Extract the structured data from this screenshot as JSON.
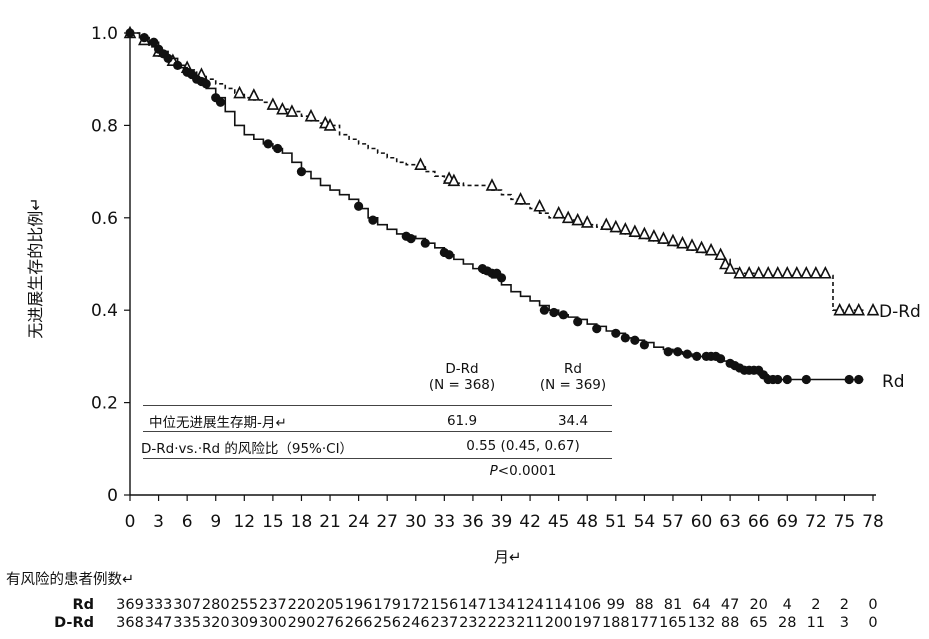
{
  "chart_data": {
    "type": "line",
    "ylabel": "无进展生存的比例↵",
    "xlabel": "月↵",
    "xlim": [
      0,
      78
    ],
    "ylim": [
      0,
      1.0
    ],
    "x_ticks": [
      0,
      3,
      6,
      9,
      12,
      15,
      18,
      21,
      24,
      27,
      30,
      33,
      36,
      39,
      42,
      45,
      48,
      51,
      54,
      57,
      60,
      63,
      66,
      69,
      72,
      75,
      78
    ],
    "y_ticks": [
      0,
      0.2,
      0.4,
      0.6,
      0.8,
      1.0
    ],
    "y_tick_labels": [
      "0",
      "0.2",
      "0.4",
      "0.6",
      "0.8",
      "1.0"
    ],
    "series": [
      {
        "name": "D-Rd",
        "style": "dashed",
        "marker": "triangle",
        "color": "#111111",
        "points": [
          [
            0,
            1.0
          ],
          [
            1,
            0.99
          ],
          [
            2,
            0.97
          ],
          [
            3,
            0.95
          ],
          [
            4,
            0.94
          ],
          [
            5,
            0.93
          ],
          [
            6,
            0.92
          ],
          [
            7,
            0.91
          ],
          [
            8,
            0.9
          ],
          [
            9,
            0.89
          ],
          [
            10,
            0.88
          ],
          [
            11,
            0.87
          ],
          [
            12,
            0.86
          ],
          [
            13,
            0.855
          ],
          [
            14,
            0.85
          ],
          [
            15,
            0.84
          ],
          [
            16,
            0.835
          ],
          [
            17,
            0.83
          ],
          [
            18,
            0.82
          ],
          [
            19,
            0.81
          ],
          [
            20,
            0.805
          ],
          [
            21,
            0.8
          ],
          [
            22,
            0.78
          ],
          [
            23,
            0.77
          ],
          [
            24,
            0.76
          ],
          [
            25,
            0.75
          ],
          [
            26,
            0.74
          ],
          [
            27,
            0.73
          ],
          [
            28,
            0.72
          ],
          [
            29,
            0.715
          ],
          [
            30,
            0.71
          ],
          [
            31,
            0.7
          ],
          [
            32,
            0.69
          ],
          [
            33,
            0.68
          ],
          [
            34,
            0.675
          ],
          [
            35,
            0.67
          ],
          [
            36,
            0.67
          ],
          [
            37,
            0.67
          ],
          [
            38,
            0.66
          ],
          [
            39,
            0.65
          ],
          [
            40,
            0.64
          ],
          [
            41,
            0.63
          ],
          [
            42,
            0.62
          ],
          [
            43,
            0.61
          ],
          [
            44,
            0.6
          ],
          [
            45,
            0.6
          ],
          [
            46,
            0.595
          ],
          [
            47,
            0.59
          ],
          [
            48,
            0.585
          ],
          [
            49,
            0.58
          ],
          [
            50,
            0.575
          ],
          [
            51,
            0.57
          ],
          [
            52,
            0.565
          ],
          [
            53,
            0.56
          ],
          [
            54,
            0.555
          ],
          [
            55,
            0.55
          ],
          [
            56,
            0.545
          ],
          [
            57,
            0.54
          ],
          [
            58,
            0.535
          ],
          [
            59,
            0.53
          ],
          [
            60,
            0.525
          ],
          [
            61,
            0.52
          ],
          [
            62,
            0.51
          ],
          [
            63,
            0.49
          ],
          [
            64,
            0.48
          ],
          [
            66,
            0.475
          ],
          [
            70,
            0.475
          ],
          [
            73,
            0.475
          ],
          [
            73.8,
            0.475
          ],
          [
            73.8,
            0.4
          ],
          [
            76,
            0.4
          ],
          [
            77,
            0.4
          ]
        ],
        "markers": [
          [
            0,
            1.0
          ],
          [
            1.5,
            0.985
          ],
          [
            3,
            0.96
          ],
          [
            4.5,
            0.94
          ],
          [
            6,
            0.925
          ],
          [
            7.5,
            0.91
          ],
          [
            11.5,
            0.87
          ],
          [
            13,
            0.865
          ],
          [
            15,
            0.845
          ],
          [
            16,
            0.835
          ],
          [
            17,
            0.83
          ],
          [
            19,
            0.82
          ],
          [
            20.5,
            0.805
          ],
          [
            21,
            0.8
          ],
          [
            30.5,
            0.715
          ],
          [
            33.5,
            0.685
          ],
          [
            34,
            0.68
          ],
          [
            38,
            0.67
          ],
          [
            41,
            0.64
          ],
          [
            43,
            0.625
          ],
          [
            45,
            0.61
          ],
          [
            46,
            0.6
          ],
          [
            47,
            0.595
          ],
          [
            48,
            0.59
          ],
          [
            50,
            0.585
          ],
          [
            51,
            0.58
          ],
          [
            52,
            0.575
          ],
          [
            53,
            0.57
          ],
          [
            54,
            0.565
          ],
          [
            55,
            0.56
          ],
          [
            56,
            0.555
          ],
          [
            57,
            0.55
          ],
          [
            58,
            0.545
          ],
          [
            59,
            0.54
          ],
          [
            60,
            0.535
          ],
          [
            61,
            0.53
          ],
          [
            62,
            0.52
          ],
          [
            62.5,
            0.5
          ],
          [
            63,
            0.49
          ],
          [
            64,
            0.48
          ],
          [
            65,
            0.48
          ],
          [
            66,
            0.48
          ],
          [
            67,
            0.48
          ],
          [
            68,
            0.48
          ],
          [
            69,
            0.48
          ],
          [
            70,
            0.48
          ],
          [
            71,
            0.48
          ],
          [
            72,
            0.48
          ],
          [
            73,
            0.48
          ],
          [
            74.5,
            0.4
          ],
          [
            75.5,
            0.4
          ],
          [
            76.5,
            0.4
          ],
          [
            78,
            0.4
          ]
        ]
      },
      {
        "name": "Rd",
        "style": "solid",
        "marker": "circle",
        "color": "#111111",
        "points": [
          [
            0,
            1.0
          ],
          [
            1,
            0.99
          ],
          [
            2,
            0.98
          ],
          [
            3,
            0.96
          ],
          [
            4,
            0.945
          ],
          [
            5,
            0.925
          ],
          [
            6,
            0.91
          ],
          [
            7,
            0.9
          ],
          [
            8,
            0.88
          ],
          [
            9,
            0.86
          ],
          [
            10,
            0.83
          ],
          [
            11,
            0.8
          ],
          [
            12,
            0.78
          ],
          [
            13,
            0.77
          ],
          [
            14,
            0.76
          ],
          [
            15,
            0.75
          ],
          [
            16,
            0.74
          ],
          [
            17,
            0.72
          ],
          [
            18,
            0.7
          ],
          [
            19,
            0.685
          ],
          [
            20,
            0.67
          ],
          [
            21,
            0.66
          ],
          [
            22,
            0.65
          ],
          [
            23,
            0.64
          ],
          [
            24,
            0.62
          ],
          [
            25,
            0.6
          ],
          [
            26,
            0.585
          ],
          [
            27,
            0.575
          ],
          [
            28,
            0.565
          ],
          [
            29,
            0.56
          ],
          [
            30,
            0.555
          ],
          [
            31,
            0.545
          ],
          [
            32,
            0.535
          ],
          [
            33,
            0.52
          ],
          [
            34,
            0.51
          ],
          [
            35,
            0.5
          ],
          [
            36,
            0.49
          ],
          [
            37,
            0.48
          ],
          [
            38,
            0.47
          ],
          [
            39,
            0.455
          ],
          [
            40,
            0.44
          ],
          [
            41,
            0.43
          ],
          [
            42,
            0.42
          ],
          [
            43,
            0.41
          ],
          [
            44,
            0.4
          ],
          [
            45,
            0.39
          ],
          [
            46,
            0.385
          ],
          [
            47,
            0.38
          ],
          [
            48,
            0.37
          ],
          [
            49,
            0.365
          ],
          [
            50,
            0.355
          ],
          [
            51,
            0.35
          ],
          [
            52,
            0.34
          ],
          [
            53,
            0.335
          ],
          [
            54,
            0.33
          ],
          [
            55,
            0.32
          ],
          [
            56,
            0.315
          ],
          [
            57,
            0.31
          ],
          [
            58,
            0.305
          ],
          [
            59,
            0.3
          ],
          [
            60,
            0.3
          ],
          [
            61,
            0.295
          ],
          [
            62,
            0.29
          ],
          [
            63,
            0.28
          ],
          [
            64,
            0.275
          ],
          [
            65,
            0.27
          ],
          [
            66,
            0.26
          ],
          [
            67,
            0.25
          ],
          [
            70,
            0.25
          ],
          [
            72,
            0.25
          ],
          [
            75,
            0.25
          ],
          [
            77,
            0.25
          ]
        ],
        "markers": [
          [
            0,
            1.0
          ],
          [
            1.5,
            0.99
          ],
          [
            2.5,
            0.98
          ],
          [
            3,
            0.965
          ],
          [
            3.5,
            0.955
          ],
          [
            4,
            0.945
          ],
          [
            5,
            0.93
          ],
          [
            6,
            0.915
          ],
          [
            6.5,
            0.91
          ],
          [
            7,
            0.9
          ],
          [
            7.5,
            0.895
          ],
          [
            8,
            0.89
          ],
          [
            9,
            0.86
          ],
          [
            9.5,
            0.85
          ],
          [
            14.5,
            0.76
          ],
          [
            15.5,
            0.75
          ],
          [
            18,
            0.7
          ],
          [
            24,
            0.625
          ],
          [
            25.5,
            0.595
          ],
          [
            29,
            0.56
          ],
          [
            29.5,
            0.555
          ],
          [
            31,
            0.545
          ],
          [
            33,
            0.525
          ],
          [
            33.5,
            0.52
          ],
          [
            37,
            0.49
          ],
          [
            37.5,
            0.485
          ],
          [
            38,
            0.48
          ],
          [
            38.5,
            0.48
          ],
          [
            39,
            0.47
          ],
          [
            43.5,
            0.4
          ],
          [
            44.5,
            0.395
          ],
          [
            45.5,
            0.39
          ],
          [
            47,
            0.375
          ],
          [
            49,
            0.36
          ],
          [
            51,
            0.35
          ],
          [
            52,
            0.34
          ],
          [
            53,
            0.335
          ],
          [
            54,
            0.325
          ],
          [
            56.5,
            0.31
          ],
          [
            57.5,
            0.31
          ],
          [
            58.5,
            0.305
          ],
          [
            59.5,
            0.3
          ],
          [
            60.5,
            0.3
          ],
          [
            61,
            0.3
          ],
          [
            61.5,
            0.3
          ],
          [
            62,
            0.295
          ],
          [
            63,
            0.285
          ],
          [
            63.5,
            0.28
          ],
          [
            64,
            0.275
          ],
          [
            64.5,
            0.27
          ],
          [
            65,
            0.27
          ],
          [
            65.5,
            0.27
          ],
          [
            66,
            0.27
          ],
          [
            66.5,
            0.26
          ],
          [
            67,
            0.25
          ],
          [
            67.5,
            0.25
          ],
          [
            68,
            0.25
          ],
          [
            69,
            0.25
          ],
          [
            71,
            0.25
          ],
          [
            75.5,
            0.25
          ],
          [
            76.5,
            0.25
          ]
        ]
      }
    ],
    "series_labels": [
      "D-Rd",
      "Rd"
    ],
    "annotation_table": {
      "col_headers": [
        {
          "line1": "D-Rd",
          "line2": "(N = 368)"
        },
        {
          "line1": "Rd",
          "line2": "(N = 369)"
        }
      ],
      "rows": [
        {
          "label": "中位无进展生存期-月↵",
          "values": [
            "61.9",
            "34.4"
          ]
        },
        {
          "label": "D-Rd·vs.·Rd 的风险比（95%·CI）",
          "merged_value": "0.55 (0.45, 0.67)"
        }
      ],
      "p_value_prefix": "P",
      "p_value_rest": "<0.0001"
    },
    "risk_table": {
      "title": "有风险的患者例数↵",
      "rows": [
        {
          "label": "Rd",
          "values": [
            "369",
            "333",
            "307",
            "280",
            "255",
            "237",
            "220",
            "205",
            "196",
            "179",
            "172",
            "156",
            "147",
            "134",
            "124",
            "114",
            "106",
            "99",
            "88",
            "81",
            "64",
            "47",
            "20",
            "4",
            "2",
            "2",
            "0"
          ]
        },
        {
          "label": "D-Rd",
          "values": [
            "368",
            "347",
            "335",
            "320",
            "309",
            "300",
            "290",
            "276",
            "266",
            "256",
            "246",
            "237",
            "232",
            "223",
            "211",
            "200",
            "197",
            "188",
            "177",
            "165",
            "132",
            "88",
            "65",
            "28",
            "11",
            "3",
            "0"
          ]
        }
      ]
    }
  }
}
